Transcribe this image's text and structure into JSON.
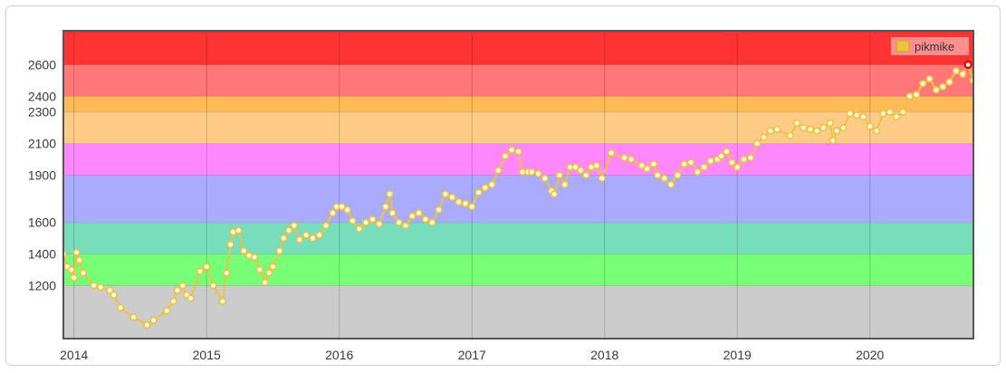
{
  "chart_data": {
    "type": "line",
    "title": "",
    "xlabel": "",
    "ylabel": "",
    "x_ticks": [
      "2014",
      "2015",
      "2016",
      "2017",
      "2018",
      "2019",
      "2020"
    ],
    "y_ticks": [
      1200,
      1400,
      1600,
      1900,
      2100,
      2300,
      2400,
      2600
    ],
    "xlim": [
      2013.92,
      2020.78
    ],
    "ylim": [
      864,
      2815
    ],
    "grid": true,
    "legend": "top-right",
    "bands": [
      {
        "from": 864,
        "to": 1200,
        "color": "#cccccc"
      },
      {
        "from": 1200,
        "to": 1400,
        "color": "#77ff77"
      },
      {
        "from": 1400,
        "to": 1600,
        "color": "#77ddbb"
      },
      {
        "from": 1600,
        "to": 1900,
        "color": "#aaaaff"
      },
      {
        "from": 1900,
        "to": 2100,
        "color": "#ff88ff"
      },
      {
        "from": 2100,
        "to": 2300,
        "color": "#ffcc88"
      },
      {
        "from": 2300,
        "to": 2400,
        "color": "#ffbb55"
      },
      {
        "from": 2400,
        "to": 2600,
        "color": "#ff7777"
      },
      {
        "from": 2600,
        "to": 2815,
        "color": "#ff3333"
      }
    ],
    "series": [
      {
        "name": "pikmike",
        "color": "#edc240",
        "points": [
          [
            2013.92,
            1400
          ],
          [
            2013.95,
            1320
          ],
          [
            2013.98,
            1300
          ],
          [
            2014.0,
            1250
          ],
          [
            2014.02,
            1410
          ],
          [
            2014.04,
            1360
          ],
          [
            2014.07,
            1280
          ],
          [
            2014.15,
            1200
          ],
          [
            2014.2,
            1190
          ],
          [
            2014.27,
            1170
          ],
          [
            2014.3,
            1140
          ],
          [
            2014.35,
            1060
          ],
          [
            2014.45,
            1000
          ],
          [
            2014.55,
            950
          ],
          [
            2014.6,
            980
          ],
          [
            2014.7,
            1040
          ],
          [
            2014.75,
            1100
          ],
          [
            2014.78,
            1170
          ],
          [
            2014.82,
            1200
          ],
          [
            2014.85,
            1140
          ],
          [
            2014.88,
            1120
          ],
          [
            2014.95,
            1290
          ],
          [
            2015.0,
            1320
          ],
          [
            2015.05,
            1200
          ],
          [
            2015.12,
            1100
          ],
          [
            2015.15,
            1280
          ],
          [
            2015.18,
            1460
          ],
          [
            2015.2,
            1540
          ],
          [
            2015.24,
            1550
          ],
          [
            2015.28,
            1420
          ],
          [
            2015.32,
            1390
          ],
          [
            2015.36,
            1380
          ],
          [
            2015.4,
            1300
          ],
          [
            2015.44,
            1220
          ],
          [
            2015.47,
            1280
          ],
          [
            2015.5,
            1320
          ],
          [
            2015.55,
            1420
          ],
          [
            2015.58,
            1500
          ],
          [
            2015.62,
            1550
          ],
          [
            2015.66,
            1580
          ],
          [
            2015.7,
            1490
          ],
          [
            2015.75,
            1520
          ],
          [
            2015.8,
            1500
          ],
          [
            2015.85,
            1520
          ],
          [
            2015.9,
            1580
          ],
          [
            2015.95,
            1660
          ],
          [
            2015.98,
            1700
          ],
          [
            2016.02,
            1700
          ],
          [
            2016.06,
            1680
          ],
          [
            2016.1,
            1610
          ],
          [
            2016.15,
            1560
          ],
          [
            2016.2,
            1600
          ],
          [
            2016.25,
            1620
          ],
          [
            2016.3,
            1590
          ],
          [
            2016.35,
            1700
          ],
          [
            2016.38,
            1780
          ],
          [
            2016.4,
            1660
          ],
          [
            2016.45,
            1600
          ],
          [
            2016.5,
            1580
          ],
          [
            2016.55,
            1640
          ],
          [
            2016.6,
            1660
          ],
          [
            2016.65,
            1620
          ],
          [
            2016.7,
            1600
          ],
          [
            2016.75,
            1680
          ],
          [
            2016.8,
            1780
          ],
          [
            2016.85,
            1760
          ],
          [
            2016.9,
            1730
          ],
          [
            2016.95,
            1720
          ],
          [
            2017.0,
            1700
          ],
          [
            2017.05,
            1790
          ],
          [
            2017.1,
            1820
          ],
          [
            2017.15,
            1840
          ],
          [
            2017.2,
            1930
          ],
          [
            2017.25,
            2020
          ],
          [
            2017.3,
            2060
          ],
          [
            2017.35,
            2050
          ],
          [
            2017.38,
            1920
          ],
          [
            2017.42,
            1920
          ],
          [
            2017.45,
            1920
          ],
          [
            2017.5,
            1910
          ],
          [
            2017.55,
            1880
          ],
          [
            2017.6,
            1800
          ],
          [
            2017.62,
            1780
          ],
          [
            2017.66,
            1900
          ],
          [
            2017.7,
            1840
          ],
          [
            2017.74,
            1950
          ],
          [
            2017.78,
            1950
          ],
          [
            2017.82,
            1930
          ],
          [
            2017.86,
            1900
          ],
          [
            2017.9,
            1950
          ],
          [
            2017.94,
            1960
          ],
          [
            2017.98,
            1880
          ],
          [
            2018.05,
            2040
          ],
          [
            2018.15,
            2010
          ],
          [
            2018.2,
            2000
          ],
          [
            2018.28,
            1960
          ],
          [
            2018.32,
            1940
          ],
          [
            2018.37,
            1970
          ],
          [
            2018.4,
            1900
          ],
          [
            2018.45,
            1880
          ],
          [
            2018.5,
            1840
          ],
          [
            2018.55,
            1900
          ],
          [
            2018.6,
            1970
          ],
          [
            2018.65,
            1980
          ],
          [
            2018.7,
            1920
          ],
          [
            2018.75,
            1950
          ],
          [
            2018.8,
            1990
          ],
          [
            2018.85,
            2000
          ],
          [
            2018.88,
            2020
          ],
          [
            2018.92,
            2050
          ],
          [
            2018.96,
            1980
          ],
          [
            2019.0,
            1950
          ],
          [
            2019.05,
            2000
          ],
          [
            2019.1,
            2010
          ],
          [
            2019.15,
            2100
          ],
          [
            2019.2,
            2140
          ],
          [
            2019.25,
            2180
          ],
          [
            2019.3,
            2190
          ],
          [
            2019.4,
            2150
          ],
          [
            2019.45,
            2230
          ],
          [
            2019.5,
            2200
          ],
          [
            2019.55,
            2190
          ],
          [
            2019.6,
            2180
          ],
          [
            2019.65,
            2200
          ],
          [
            2019.7,
            2230
          ],
          [
            2019.72,
            2120
          ],
          [
            2019.75,
            2180
          ],
          [
            2019.8,
            2200
          ],
          [
            2019.85,
            2290
          ],
          [
            2019.9,
            2280
          ],
          [
            2019.95,
            2270
          ],
          [
            2020.0,
            2210
          ],
          [
            2020.05,
            2180
          ],
          [
            2020.1,
            2290
          ],
          [
            2020.15,
            2300
          ],
          [
            2020.2,
            2270
          ],
          [
            2020.25,
            2300
          ],
          [
            2020.3,
            2400
          ],
          [
            2020.35,
            2410
          ],
          [
            2020.4,
            2480
          ],
          [
            2020.45,
            2510
          ],
          [
            2020.5,
            2440
          ],
          [
            2020.55,
            2460
          ],
          [
            2020.6,
            2490
          ],
          [
            2020.65,
            2560
          ],
          [
            2020.7,
            2540
          ],
          [
            2020.74,
            2600
          ],
          [
            2020.78,
            2500
          ]
        ]
      }
    ],
    "highlight_point": [
      2020.74,
      2600
    ],
    "highlight_color": "#dd0000"
  }
}
